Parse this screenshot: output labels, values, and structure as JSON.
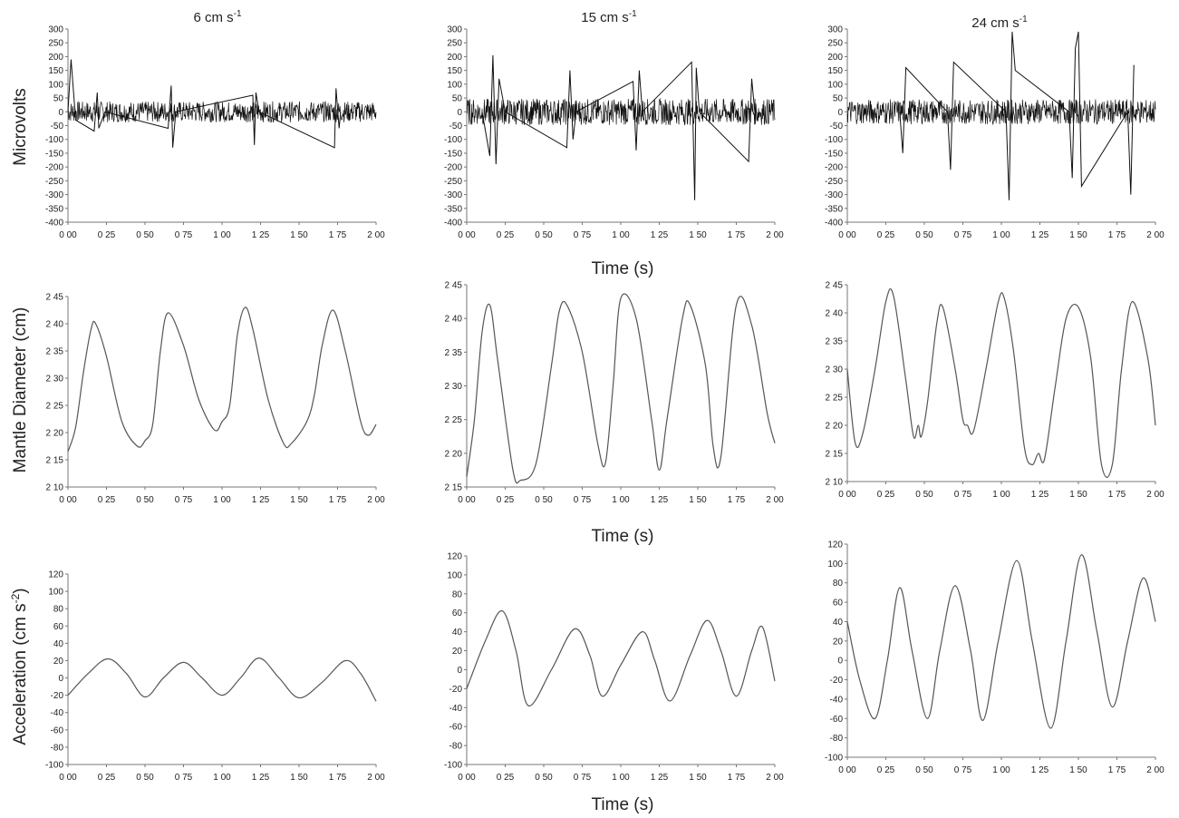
{
  "column_titles": [
    "6 cm s",
    "15 cm s",
    "24 cm s"
  ],
  "column_title_sup": "-1",
  "row_labels": {
    "microvolts": "Microvolts",
    "mantle": "Mantle Diameter (cm)",
    "accel": "Acceleration (cm s",
    "accel_sup": "-2",
    "accel_end": ")"
  },
  "time_label": "Time (s)",
  "colors": {
    "trace": "#555555",
    "emg": "#111111",
    "axis": "#777777"
  },
  "chart_data": [
    {
      "type": "line",
      "row": "emg",
      "speed": "6 cm s-1",
      "xlim": [
        0,
        2
      ],
      "ylim": [
        -400,
        300
      ],
      "xticks": [
        0,
        0.25,
        0.5,
        0.75,
        1,
        1.25,
        1.5,
        1.75,
        2
      ],
      "xticklabels": [
        "0 00",
        "0 25",
        "0 50",
        "0 75",
        "1 00",
        "1 25",
        "1 50",
        "1 75",
        "2 00"
      ],
      "yticks": [
        300,
        250,
        200,
        150,
        100,
        50,
        0,
        -50,
        -100,
        -150,
        -200,
        -250,
        -300,
        -350,
        -400
      ],
      "yticklabels": [
        "300",
        "250",
        "200",
        "150",
        "100",
        "50",
        "0",
        "-50",
        "-100",
        "-150",
        "-200",
        "-250",
        "-300",
        "-350",
        "-400"
      ],
      "noise_amp": 38,
      "x": [
        0.0,
        0.02,
        0.05,
        0.17,
        0.19,
        0.2,
        0.24,
        0.65,
        0.67,
        0.68,
        0.7,
        1.2,
        1.21,
        1.22,
        1.24,
        1.73,
        1.74,
        1.76,
        1.77
      ],
      "y": [
        0,
        190,
        -30,
        -70,
        70,
        -60,
        0,
        -60,
        95,
        -130,
        0,
        60,
        -120,
        70,
        0,
        -130,
        85,
        -60,
        0
      ],
      "ylabel": "Microvolts",
      "title": "6 cm s-1"
    },
    {
      "type": "line",
      "row": "emg",
      "speed": "15 cm s-1",
      "xlim": [
        0,
        2
      ],
      "ylim": [
        -400,
        300
      ],
      "xticks": [
        0,
        0.25,
        0.5,
        0.75,
        1,
        1.25,
        1.5,
        1.75,
        2
      ],
      "xticklabels": [
        "0 00",
        "0 25",
        "0 50",
        "0 75",
        "1 00",
        "1 25",
        "1 50",
        "1 75",
        "2 00"
      ],
      "yticks": [
        300,
        250,
        200,
        150,
        100,
        50,
        0,
        -50,
        -100,
        -150,
        -200,
        -250,
        -300,
        -350,
        -400
      ],
      "yticklabels": [
        "300",
        "250",
        "200",
        "150",
        "100",
        "50",
        "0",
        "-50",
        "-100",
        "-150",
        "-200",
        "-250",
        "-300",
        "-350",
        "-400"
      ],
      "noise_amp": 48,
      "x": [
        0.1,
        0.15,
        0.17,
        0.19,
        0.21,
        0.25,
        0.65,
        0.67,
        0.69,
        0.71,
        1.08,
        1.1,
        1.12,
        1.14,
        1.46,
        1.48,
        1.49,
        1.51,
        1.83,
        1.85,
        1.87
      ],
      "y": [
        0,
        -160,
        205,
        -190,
        120,
        0,
        -130,
        150,
        -100,
        0,
        110,
        -140,
        150,
        0,
        180,
        -320,
        160,
        0,
        -180,
        120,
        0
      ],
      "title": "15 cm s-1"
    },
    {
      "type": "line",
      "row": "emg",
      "speed": "24 cm s-1",
      "xlim": [
        0,
        2
      ],
      "ylim": [
        -400,
        300
      ],
      "xticks": [
        0,
        0.25,
        0.5,
        0.75,
        1,
        1.25,
        1.5,
        1.75,
        2
      ],
      "xticklabels": [
        "0 00",
        "0 25",
        "0 50",
        "0 75",
        "1 00",
        "1 25",
        "1 50",
        "1 75",
        "2 00"
      ],
      "yticks": [
        300,
        250,
        200,
        150,
        100,
        50,
        0,
        -50,
        -100,
        -150,
        -200,
        -250,
        -300,
        -350,
        -400
      ],
      "yticklabels": [
        "300",
        "250",
        "200",
        "150",
        "100",
        "50",
        "0",
        "-50",
        "-100",
        "-150",
        "-200",
        "-250",
        "-300",
        "-350",
        "-400"
      ],
      "noise_amp": 45,
      "x": [
        0.34,
        0.36,
        0.38,
        0.65,
        0.67,
        0.69,
        1.03,
        1.05,
        1.07,
        1.09,
        1.44,
        1.46,
        1.48,
        1.5,
        1.52,
        1.82,
        1.84,
        1.86
      ],
      "y": [
        0,
        -150,
        160,
        0,
        -210,
        180,
        0,
        -320,
        290,
        150,
        0,
        -240,
        230,
        290,
        -270,
        0,
        -300,
        170
      ],
      "title": "24 cm s-1"
    },
    {
      "type": "line",
      "row": "mantle",
      "speed": "6 cm s-1",
      "xlim": [
        0,
        2
      ],
      "ylim": [
        2.1,
        2.45
      ],
      "xticks": [
        0,
        0.25,
        0.5,
        0.75,
        1,
        1.25,
        1.5,
        1.75,
        2
      ],
      "xticklabels": [
        "0 00",
        "0 25",
        "0 50",
        "0 75",
        "1 00",
        "1 25",
        "1 50",
        "1 75",
        "2 00"
      ],
      "yticks": [
        2.45,
        2.4,
        2.35,
        2.3,
        2.25,
        2.2,
        2.15,
        2.1
      ],
      "yticklabels": [
        "2 45",
        "2 40",
        "2 35",
        "2 30",
        "2 25",
        "2 20",
        "2 15",
        "2 10"
      ],
      "x": [
        0,
        0.05,
        0.1,
        0.15,
        0.18,
        0.25,
        0.35,
        0.45,
        0.5,
        0.55,
        0.6,
        0.65,
        0.75,
        0.85,
        0.95,
        1.0,
        1.05,
        1.1,
        1.15,
        1.2,
        1.3,
        1.4,
        1.45,
        1.55,
        1.6,
        1.65,
        1.72,
        1.8,
        1.9,
        1.95,
        2.0
      ],
      "y": [
        2.165,
        2.21,
        2.31,
        2.39,
        2.4,
        2.34,
        2.22,
        2.175,
        2.185,
        2.215,
        2.35,
        2.42,
        2.36,
        2.26,
        2.205,
        2.22,
        2.25,
        2.38,
        2.43,
        2.39,
        2.26,
        2.18,
        2.18,
        2.22,
        2.27,
        2.36,
        2.425,
        2.35,
        2.22,
        2.195,
        2.215
      ],
      "ylabel": "Mantle Diameter (cm)"
    },
    {
      "type": "line",
      "row": "mantle",
      "speed": "15 cm s-1",
      "xlim": [
        0,
        2
      ],
      "ylim": [
        2.15,
        2.45
      ],
      "xticks": [
        0,
        0.25,
        0.5,
        0.75,
        1,
        1.25,
        1.5,
        1.75,
        2
      ],
      "xticklabels": [
        "0 00",
        "0 25",
        "0 50",
        "0 75",
        "1 00",
        "1 25",
        "1 50",
        "1 75",
        "2 00"
      ],
      "yticks": [
        2.45,
        2.4,
        2.35,
        2.3,
        2.25,
        2.2,
        2.15
      ],
      "yticklabels": [
        "2 45",
        "2 40",
        "2 35",
        "2 30",
        "2 25",
        "2 20",
        "2 15"
      ],
      "x": [
        0,
        0.05,
        0.1,
        0.15,
        0.2,
        0.3,
        0.35,
        0.45,
        0.55,
        0.6,
        0.65,
        0.75,
        0.85,
        0.9,
        0.95,
        1.0,
        1.1,
        1.2,
        1.25,
        1.3,
        1.4,
        1.45,
        1.55,
        1.6,
        1.65,
        1.75,
        1.85,
        1.95,
        2.0
      ],
      "y": [
        2.165,
        2.25,
        2.38,
        2.42,
        2.34,
        2.175,
        2.16,
        2.185,
        2.33,
        2.41,
        2.42,
        2.35,
        2.215,
        2.185,
        2.3,
        2.43,
        2.4,
        2.25,
        2.175,
        2.25,
        2.4,
        2.42,
        2.33,
        2.21,
        2.195,
        2.42,
        2.39,
        2.26,
        2.215
      ]
    },
    {
      "type": "line",
      "row": "mantle",
      "speed": "24 cm s-1",
      "xlim": [
        0,
        2
      ],
      "ylim": [
        2.1,
        2.45
      ],
      "xticks": [
        0,
        0.25,
        0.5,
        0.75,
        1,
        1.25,
        1.5,
        1.75,
        2
      ],
      "xticklabels": [
        "0 00",
        "0 25",
        "0 50",
        "0 75",
        "1 00",
        "1 25",
        "1 50",
        "1 75",
        "2 00"
      ],
      "yticks": [
        2.45,
        2.4,
        2.35,
        2.3,
        2.25,
        2.2,
        2.15,
        2.1
      ],
      "yticklabels": [
        "2 45",
        "2 40",
        "2 35",
        "2 30",
        "2 25",
        "2 20",
        "2 15",
        "2 10"
      ],
      "x": [
        0,
        0.05,
        0.1,
        0.18,
        0.25,
        0.3,
        0.38,
        0.43,
        0.46,
        0.48,
        0.52,
        0.58,
        0.62,
        0.7,
        0.75,
        0.78,
        0.82,
        0.9,
        0.98,
        1.02,
        1.08,
        1.15,
        1.2,
        1.24,
        1.28,
        1.35,
        1.42,
        1.5,
        1.58,
        1.65,
        1.72,
        1.78,
        1.85,
        1.95,
        2.0
      ],
      "y": [
        2.3,
        2.17,
        2.185,
        2.3,
        2.42,
        2.43,
        2.28,
        2.18,
        2.2,
        2.18,
        2.24,
        2.38,
        2.41,
        2.3,
        2.21,
        2.2,
        2.19,
        2.3,
        2.42,
        2.425,
        2.33,
        2.16,
        2.13,
        2.15,
        2.14,
        2.27,
        2.39,
        2.41,
        2.32,
        2.13,
        2.13,
        2.3,
        2.42,
        2.32,
        2.2
      ]
    },
    {
      "type": "line",
      "row": "accel",
      "speed": "6 cm s-1",
      "xlim": [
        0,
        2
      ],
      "ylim": [
        -100,
        120
      ],
      "xticks": [
        0,
        0.25,
        0.5,
        0.75,
        1,
        1.25,
        1.5,
        1.75,
        2
      ],
      "xticklabels": [
        "0 00",
        "0 25",
        "0 50",
        "0 75",
        "1 00",
        "1 25",
        "1 50",
        "1 75",
        "2 00"
      ],
      "yticks": [
        120,
        100,
        80,
        60,
        40,
        20,
        0,
        -20,
        -40,
        -60,
        -80,
        -100
      ],
      "yticklabels": [
        "120",
        "100",
        "80",
        "60",
        "40",
        "20",
        "0",
        "-20",
        "-40",
        "-60",
        "-80",
        "-100"
      ],
      "x": [
        0,
        0.13,
        0.26,
        0.38,
        0.5,
        0.62,
        0.75,
        0.87,
        1.0,
        1.12,
        1.24,
        1.37,
        1.5,
        1.65,
        1.8,
        1.9,
        2.0
      ],
      "y": [
        -20,
        5,
        22,
        5,
        -22,
        0,
        18,
        0,
        -20,
        0,
        23,
        0,
        -23,
        -5,
        20,
        5,
        -27
      ],
      "ylabel": "Acceleration (cm s-2)"
    },
    {
      "type": "line",
      "row": "accel",
      "speed": "15 cm s-1",
      "xlim": [
        0,
        2
      ],
      "ylim": [
        -100,
        120
      ],
      "xticks": [
        0,
        0.25,
        0.5,
        0.75,
        1,
        1.25,
        1.5,
        1.75,
        2
      ],
      "xticklabels": [
        "0 00",
        "0 25",
        "0 50",
        "0 75",
        "1 00",
        "1 25",
        "1 50",
        "1 75",
        "2 00"
      ],
      "yticks": [
        120,
        100,
        80,
        60,
        40,
        20,
        0,
        -20,
        -40,
        -60,
        -80,
        -100
      ],
      "yticklabels": [
        "120",
        "100",
        "80",
        "60",
        "40",
        "20",
        "0",
        "-20",
        "-40",
        "-60",
        "-80",
        "-100"
      ],
      "x": [
        0,
        0.12,
        0.23,
        0.32,
        0.4,
        0.55,
        0.7,
        0.8,
        0.88,
        1.0,
        1.14,
        1.22,
        1.32,
        1.45,
        1.56,
        1.65,
        1.75,
        1.85,
        1.92,
        2.0
      ],
      "y": [
        -20,
        30,
        62,
        20,
        -38,
        0,
        43,
        15,
        -28,
        5,
        40,
        10,
        -33,
        15,
        52,
        20,
        -28,
        20,
        45,
        -12
      ]
    },
    {
      "type": "line",
      "row": "accel",
      "speed": "24 cm s-1",
      "xlim": [
        0,
        2
      ],
      "ylim": [
        -100,
        120
      ],
      "xticks": [
        0,
        0.25,
        0.5,
        0.75,
        1,
        1.25,
        1.5,
        1.75,
        2
      ],
      "xticklabels": [
        "0 00",
        "0 25",
        "0 50",
        "0 75",
        "1 00",
        "1 25",
        "1 50",
        "1 75",
        "2 00"
      ],
      "yticks": [
        120,
        100,
        80,
        60,
        40,
        20,
        0,
        -20,
        -40,
        -60,
        -80,
        -100
      ],
      "yticklabels": [
        "120",
        "100",
        "80",
        "60",
        "40",
        "20",
        "0",
        "-20",
        "-40",
        "-60",
        "-80",
        "-100"
      ],
      "x": [
        0,
        0.08,
        0.18,
        0.26,
        0.34,
        0.42,
        0.52,
        0.6,
        0.7,
        0.8,
        0.88,
        0.98,
        1.1,
        1.2,
        1.32,
        1.42,
        1.52,
        1.62,
        1.72,
        1.82,
        1.92,
        2.0
      ],
      "y": [
        40,
        -20,
        -60,
        0,
        75,
        10,
        -60,
        10,
        77,
        10,
        -62,
        20,
        103,
        20,
        -70,
        20,
        109,
        30,
        -48,
        20,
        85,
        40
      ]
    }
  ]
}
